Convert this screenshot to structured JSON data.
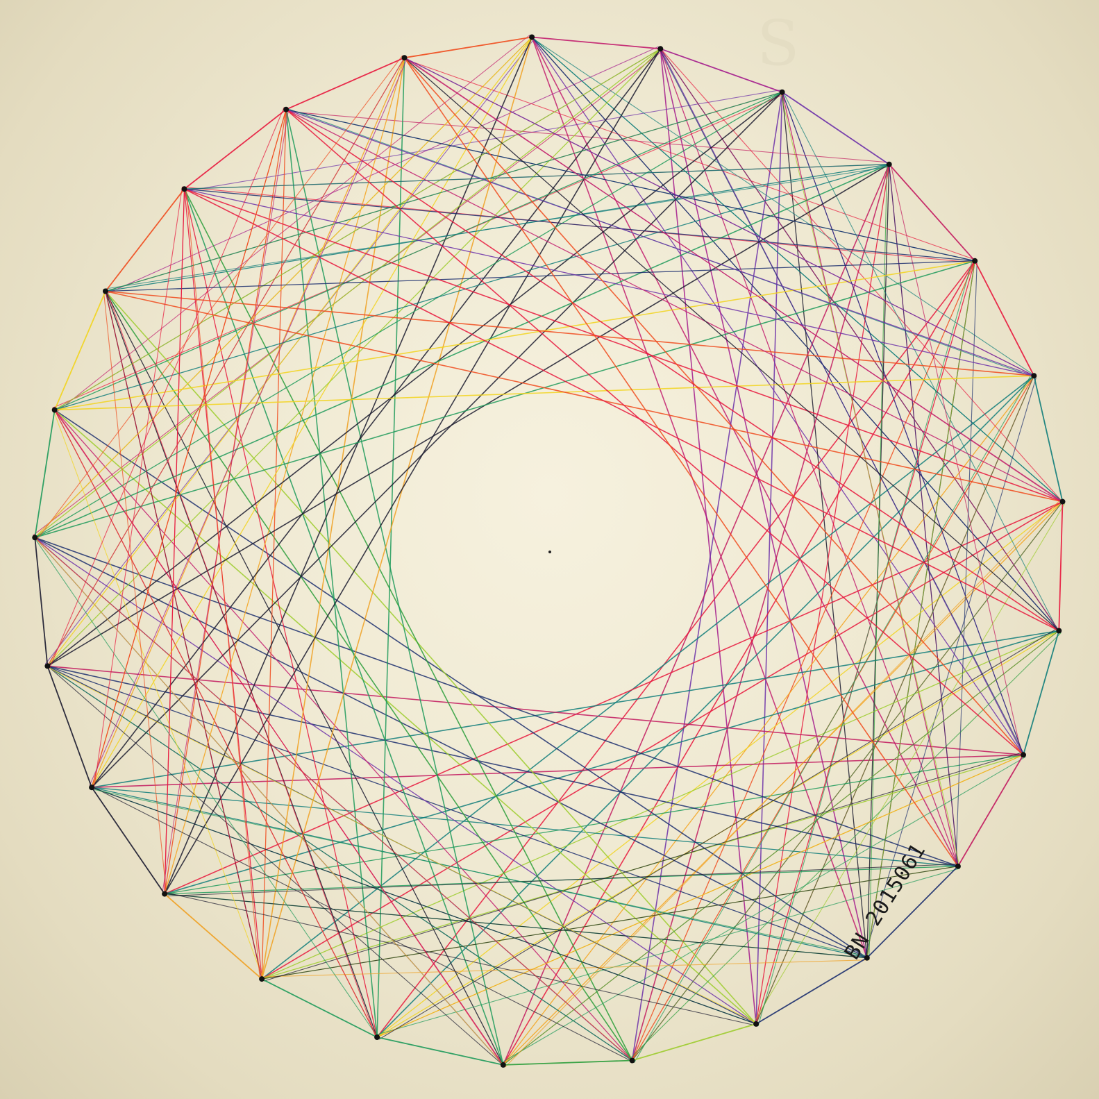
{
  "artwork": {
    "subject": "string-art",
    "nail_count": 25,
    "thread_colors": [
      "#e8163c",
      "#f04a1c",
      "#f5a21a",
      "#f2d41c",
      "#9ccc2c",
      "#1d9a5a",
      "#0f7d7a",
      "#1c2f6e",
      "#6b2fa8",
      "#c21d6e",
      "#1a1a2e"
    ],
    "nail_color": "#111111",
    "paper_color": "#efe9d2"
  },
  "signature": {
    "text": "BN 2015061"
  }
}
